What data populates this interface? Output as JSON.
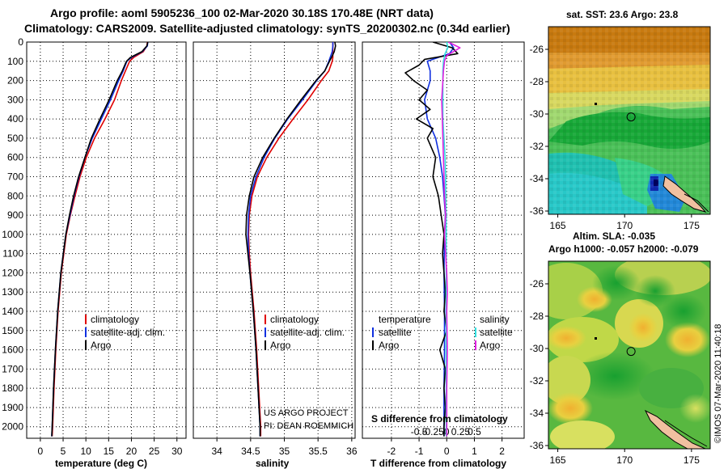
{
  "header": {
    "title_line1": "Argo profile: aoml 5905236_100 02-Mar-2020 30.18S 170.48E (NRT data)",
    "title_line2": "Climatology: CARS2009. Satellite-adjusted climatology: synTS_20200302.nc (0.34d earlier)"
  },
  "colors": {
    "climatology": "#e00000",
    "satellite": "#1030e0",
    "argo": "#000000",
    "sat_salinity": "#30e0e0",
    "argo_salinity": "#e020e0"
  },
  "y_axis": {
    "ticks": [
      "0",
      "100",
      "200",
      "300",
      "400",
      "500",
      "600",
      "700",
      "800",
      "900",
      "1000",
      "1100",
      "1200",
      "1300",
      "1400",
      "1500",
      "1600",
      "1700",
      "1800",
      "1900",
      "2000"
    ],
    "range": [
      0,
      2060
    ]
  },
  "chart_data": [
    {
      "type": "line",
      "name": "temperature",
      "xlabel": "temperature (deg C)",
      "xticks": [
        "0",
        "5",
        "10",
        "15",
        "20",
        "25",
        "30"
      ],
      "xlim": [
        -3,
        32
      ],
      "legend": [
        "climatology",
        "satellite-adj. clim.",
        "Argo"
      ],
      "series": [
        {
          "name": "climatology",
          "depth": [
            0,
            20,
            50,
            80,
            100,
            150,
            200,
            300,
            400,
            500,
            600,
            700,
            800,
            900,
            1000,
            1200,
            1400,
            1600,
            1800,
            2000,
            2050
          ],
          "values": [
            23.5,
            23.4,
            22.6,
            20.5,
            19.6,
            18.7,
            17.8,
            16.3,
            14.2,
            11.9,
            10.1,
            8.7,
            7.6,
            6.6,
            5.7,
            4.6,
            3.9,
            3.4,
            3.0,
            2.7,
            2.6
          ]
        },
        {
          "name": "satellite-adj. clim.",
          "depth": [
            0,
            20,
            50,
            80,
            100,
            150,
            200,
            300,
            400,
            500,
            600,
            700,
            800,
            900,
            1000,
            1200,
            1400,
            1600,
            1800,
            2000,
            2050
          ],
          "values": [
            23.6,
            23.5,
            22.4,
            20.0,
            19.0,
            18.2,
            17.2,
            15.4,
            13.4,
            11.4,
            9.8,
            8.5,
            7.4,
            6.5,
            5.6,
            4.5,
            3.8,
            3.3,
            2.9,
            2.6,
            2.5
          ]
        },
        {
          "name": "Argo",
          "depth": [
            0,
            20,
            50,
            80,
            100,
            150,
            200,
            300,
            400,
            500,
            600,
            700,
            800,
            900,
            1000,
            1200,
            1400,
            1600,
            1800,
            2000,
            2050
          ],
          "values": [
            23.6,
            23.4,
            22.3,
            19.8,
            18.9,
            18.0,
            16.9,
            15.1,
            13.1,
            11.2,
            9.8,
            8.4,
            7.3,
            6.4,
            5.6,
            4.5,
            3.8,
            3.3,
            2.9,
            2.6,
            2.5
          ]
        }
      ]
    },
    {
      "type": "line",
      "name": "salinity",
      "xlabel": "salinity",
      "xticks": [
        "34",
        "34.5",
        "35",
        "35.5",
        "36"
      ],
      "xlim": [
        33.65,
        36.05
      ],
      "legend": [
        "climatology",
        "satellite-adj. clim.",
        "Argo"
      ],
      "series": [
        {
          "name": "climatology",
          "depth": [
            0,
            20,
            50,
            80,
            100,
            150,
            200,
            300,
            400,
            500,
            600,
            700,
            800,
            900,
            1000,
            1100,
            1200,
            1400,
            1600,
            1800,
            2000,
            2050
          ],
          "values": [
            35.72,
            35.72,
            35.72,
            35.72,
            35.71,
            35.66,
            35.55,
            35.35,
            35.13,
            34.92,
            34.74,
            34.6,
            34.52,
            34.48,
            34.47,
            34.48,
            34.5,
            34.55,
            34.59,
            34.62,
            34.65,
            34.65
          ]
        },
        {
          "name": "satellite-adj. clim.",
          "depth": [
            0,
            20,
            50,
            80,
            100,
            150,
            200,
            300,
            400,
            500,
            600,
            700,
            800,
            900,
            1000,
            1100,
            1200,
            1400,
            1600,
            1800,
            2000,
            2050
          ],
          "values": [
            35.72,
            35.72,
            35.71,
            35.68,
            35.66,
            35.6,
            35.48,
            35.27,
            35.05,
            34.86,
            34.7,
            34.58,
            34.5,
            34.47,
            34.46,
            34.47,
            34.49,
            34.54,
            34.58,
            34.61,
            34.64,
            34.64
          ]
        },
        {
          "name": "Argo",
          "depth": [
            0,
            20,
            50,
            80,
            100,
            150,
            200,
            300,
            400,
            500,
            600,
            700,
            800,
            900,
            1000,
            1100,
            1200,
            1400,
            1600,
            1800,
            2000,
            2050
          ],
          "values": [
            35.75,
            35.76,
            35.74,
            35.7,
            35.67,
            35.6,
            35.47,
            35.25,
            35.04,
            34.85,
            34.68,
            34.55,
            34.48,
            34.44,
            34.43,
            34.46,
            34.49,
            34.54,
            34.58,
            34.61,
            34.64,
            34.64
          ]
        }
      ]
    },
    {
      "type": "line",
      "name": "difference",
      "xlabel": "T difference from climatology",
      "xlabel2": "S difference from climatology",
      "xticks": [
        "-2",
        "-1",
        "0",
        "1",
        "2"
      ],
      "xlim": [
        -3.05,
        2.8
      ],
      "s_ticks": [
        "-0.5",
        "-0.25",
        "0",
        "0.25",
        "0.5"
      ],
      "legend_header_t": "temperature",
      "legend_header_s": "salinity",
      "legend": [
        "satellite",
        "Argo",
        "satellite",
        "Argo"
      ],
      "series": [
        {
          "name": "T satellite",
          "depth": [
            0,
            30,
            60,
            80,
            100,
            150,
            200,
            300,
            400,
            500,
            600,
            700,
            800,
            900,
            1000,
            1200,
            1400,
            1600,
            1800,
            2000,
            2050
          ],
          "values": [
            0.1,
            0.25,
            0.1,
            -0.3,
            -0.7,
            -0.6,
            -0.6,
            -0.8,
            -0.7,
            -0.4,
            -0.25,
            -0.15,
            -0.1,
            -0.05,
            -0.08,
            -0.1,
            -0.08,
            -0.08,
            -0.1,
            -0.1,
            -0.1
          ]
        },
        {
          "name": "T Argo",
          "depth": [
            0,
            30,
            60,
            90,
            120,
            160,
            200,
            250,
            300,
            350,
            400,
            450,
            500,
            600,
            700,
            800,
            900,
            1000,
            1100,
            1200,
            1300,
            1400,
            1500,
            1600,
            1700,
            1800,
            1900,
            2000,
            2050
          ],
          "values": [
            -0.5,
            0.2,
            0.4,
            -0.8,
            -1.0,
            -1.5,
            -1.2,
            -0.7,
            -1.0,
            -0.6,
            -1.1,
            -0.5,
            -0.7,
            -0.4,
            -0.5,
            -0.3,
            -0.2,
            -0.1,
            -0.15,
            -0.1,
            -0.05,
            -0.1,
            0.0,
            -0.25,
            -0.05,
            -0.1,
            -0.05,
            -0.1,
            -0.1
          ]
        },
        {
          "name": "S satellite",
          "depth": [
            0,
            30,
            60,
            100,
            150,
            200,
            300,
            400,
            500,
            600,
            700,
            800,
            900,
            1000,
            1200,
            1400,
            1600,
            1800,
            2000,
            2050
          ],
          "values": [
            0.0,
            0.02,
            -0.03,
            -0.06,
            -0.07,
            -0.07,
            -0.07,
            -0.07,
            -0.05,
            -0.03,
            -0.02,
            -0.02,
            -0.01,
            -0.01,
            -0.01,
            -0.01,
            -0.01,
            -0.01,
            -0.01,
            -0.01
          ]
        },
        {
          "name": "S Argo",
          "depth": [
            0,
            30,
            50,
            70,
            100,
            150,
            200,
            300,
            400,
            500,
            600,
            700,
            800,
            900,
            1000,
            1100,
            1200,
            1300,
            1400,
            1600,
            1800,
            2000,
            2050
          ],
          "values": [
            0.03,
            0.24,
            0.12,
            0.0,
            -0.04,
            -0.06,
            -0.07,
            -0.09,
            -0.08,
            -0.07,
            -0.06,
            -0.05,
            -0.04,
            -0.02,
            -0.04,
            -0.02,
            0.0,
            0.01,
            0.0,
            0.01,
            0.0,
            0.0,
            0.0
          ]
        }
      ]
    }
  ],
  "map_sst": {
    "title": "sat. SST: 23.6 Argo: 23.8",
    "xticks": [
      "165",
      "170",
      "175"
    ],
    "yticks": [
      "-26",
      "-28",
      "-30",
      "-32",
      "-34",
      "-36"
    ],
    "lon": [
      164.3,
      176.4
    ],
    "lat": [
      -24.6,
      -36.2
    ],
    "float_lon": 170.48,
    "float_lat": -30.18
  },
  "map_sla": {
    "title1": "Altim. SLA: -0.035",
    "title2": "Argo h1000: -0.057 h2000: -0.079",
    "xticks": [
      "165",
      "170",
      "175"
    ],
    "yticks": [
      "-26",
      "-28",
      "-30",
      "-32",
      "-34",
      "-36"
    ],
    "lon": [
      164.3,
      176.4
    ],
    "lat": [
      -24.6,
      -36.2
    ],
    "float_lon": 170.48,
    "float_lat": -30.18
  },
  "credits": {
    "project": "US ARGO PROJECT",
    "pi": "PI: DEAN ROEMMICH",
    "imos": "©IMOS 07-Mar-2020 11:40:18"
  }
}
